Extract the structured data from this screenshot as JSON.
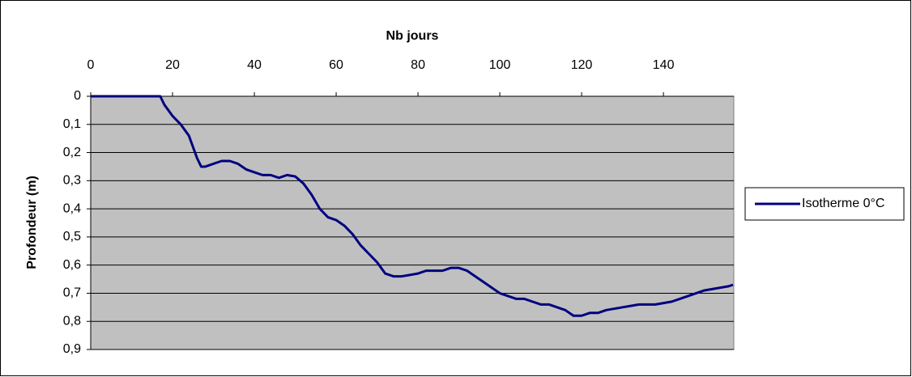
{
  "chart_data": {
    "type": "line",
    "x_label": "Nb jours",
    "y_label": "Profondeur (m)",
    "x": [
      0,
      17,
      18,
      20,
      22,
      24,
      25,
      26,
      27,
      28,
      30,
      32,
      34,
      36,
      38,
      40,
      42,
      44,
      46,
      48,
      50,
      52,
      54,
      56,
      58,
      60,
      62,
      64,
      66,
      68,
      70,
      72,
      74,
      76,
      78,
      80,
      82,
      84,
      86,
      88,
      90,
      92,
      94,
      96,
      98,
      100,
      102,
      104,
      106,
      108,
      110,
      112,
      114,
      116,
      118,
      120,
      122,
      124,
      126,
      128,
      130,
      132,
      134,
      136,
      138,
      140,
      142,
      144,
      146,
      148,
      150,
      152,
      154,
      156,
      157
    ],
    "series": [
      {
        "name": "Isotherme 0°C",
        "color": "#000080",
        "values": [
          0,
          0,
          0.03,
          0.07,
          0.1,
          0.14,
          0.18,
          0.22,
          0.25,
          0.25,
          0.24,
          0.23,
          0.23,
          0.24,
          0.26,
          0.27,
          0.28,
          0.28,
          0.29,
          0.28,
          0.285,
          0.31,
          0.35,
          0.4,
          0.43,
          0.44,
          0.46,
          0.49,
          0.53,
          0.56,
          0.59,
          0.63,
          0.64,
          0.64,
          0.635,
          0.63,
          0.62,
          0.62,
          0.62,
          0.61,
          0.61,
          0.62,
          0.64,
          0.66,
          0.68,
          0.7,
          0.71,
          0.72,
          0.72,
          0.73,
          0.74,
          0.74,
          0.75,
          0.76,
          0.78,
          0.78,
          0.77,
          0.77,
          0.76,
          0.755,
          0.75,
          0.745,
          0.74,
          0.74,
          0.74,
          0.735,
          0.73,
          0.72,
          0.71,
          0.7,
          0.69,
          0.685,
          0.68,
          0.675,
          0.67
        ]
      }
    ],
    "xlim": [
      0,
      157.2
    ],
    "xticks": [
      0,
      20,
      40,
      60,
      80,
      100,
      120,
      140
    ],
    "ylim": [
      0,
      0.9
    ],
    "y_inverted": true,
    "yticks": [
      0,
      {
        "value": 0.1,
        "label": "0,1"
      },
      {
        "value": 0.2,
        "label": "0,2"
      },
      {
        "value": 0.3,
        "label": "0,3"
      },
      {
        "value": 0.4,
        "label": "0,4"
      },
      {
        "value": 0.5,
        "label": "0,5"
      },
      {
        "value": 0.6,
        "label": "0,6"
      },
      {
        "value": 0.7,
        "label": "0,7"
      },
      {
        "value": 0.8,
        "label": "0,8"
      },
      {
        "value": 0.9,
        "label": "0,9"
      }
    ],
    "grid": true,
    "plot_background": "#c0c0c0",
    "legend": "right"
  }
}
